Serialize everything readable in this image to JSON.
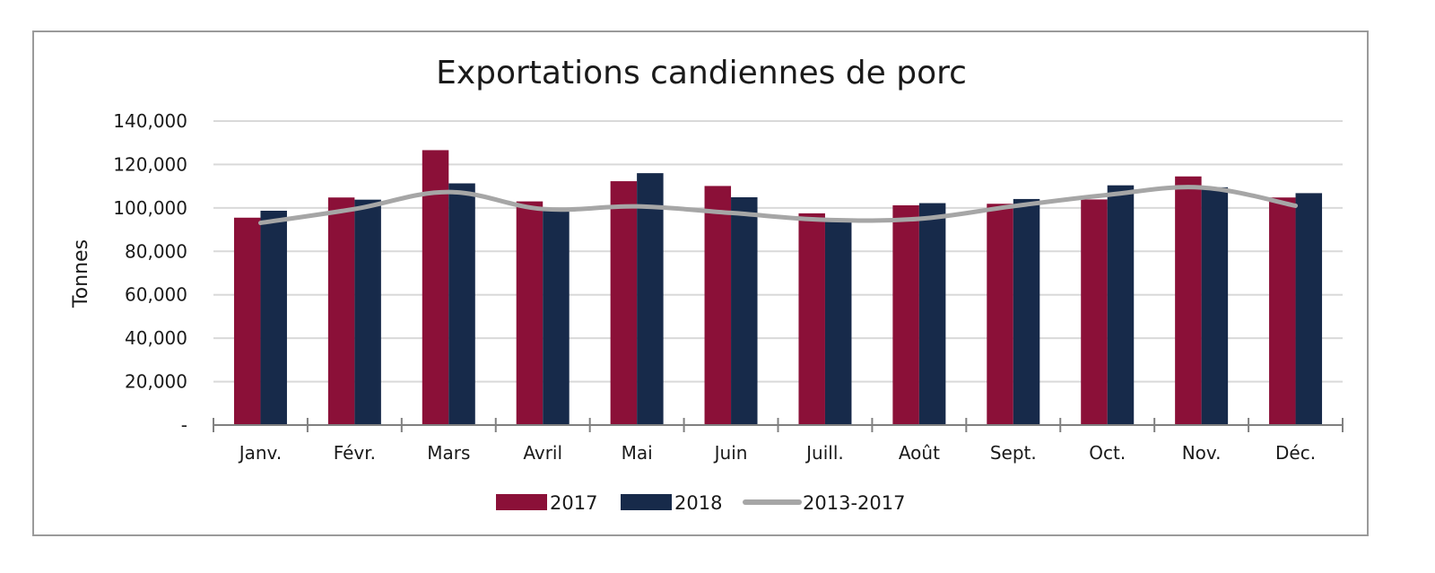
{
  "chart_data": {
    "type": "bar",
    "title": "Exportations candiennes de porc",
    "xlabel": "",
    "ylabel": "Tonnes",
    "categories": [
      "Janv.",
      "Févr.",
      "Mars",
      "Avril",
      "Mai",
      "Juin",
      "Juill.",
      "Août",
      "Sept.",
      "Oct.",
      "Nov.",
      "Déc."
    ],
    "ylim": [
      0,
      140000
    ],
    "yticks": [
      0,
      20000,
      40000,
      60000,
      80000,
      100000,
      120000,
      140000
    ],
    "ytick_labels": [
      "-",
      "20,000",
      "40,000",
      "60,000",
      "80,000",
      "100,000",
      "120,000",
      "140,000"
    ],
    "grid": true,
    "legend_position": "bottom",
    "series": [
      {
        "name": "2017",
        "type": "bar",
        "color": "#8b1038",
        "values": [
          95500,
          104800,
          126600,
          103000,
          112300,
          110100,
          97500,
          101200,
          101900,
          103900,
          114500,
          104800
        ]
      },
      {
        "name": "2018",
        "type": "bar",
        "color": "#172a4a",
        "values": [
          98700,
          103800,
          111300,
          99500,
          116000,
          104900,
          94600,
          102200,
          104100,
          110400,
          109500,
          106800
        ]
      },
      {
        "name": "2013-2017",
        "type": "line",
        "color": "#a6a6a6",
        "values": [
          93100,
          99500,
          107300,
          99500,
          100700,
          97700,
          94500,
          95000,
          100800,
          106000,
          109400,
          101000
        ]
      }
    ]
  }
}
